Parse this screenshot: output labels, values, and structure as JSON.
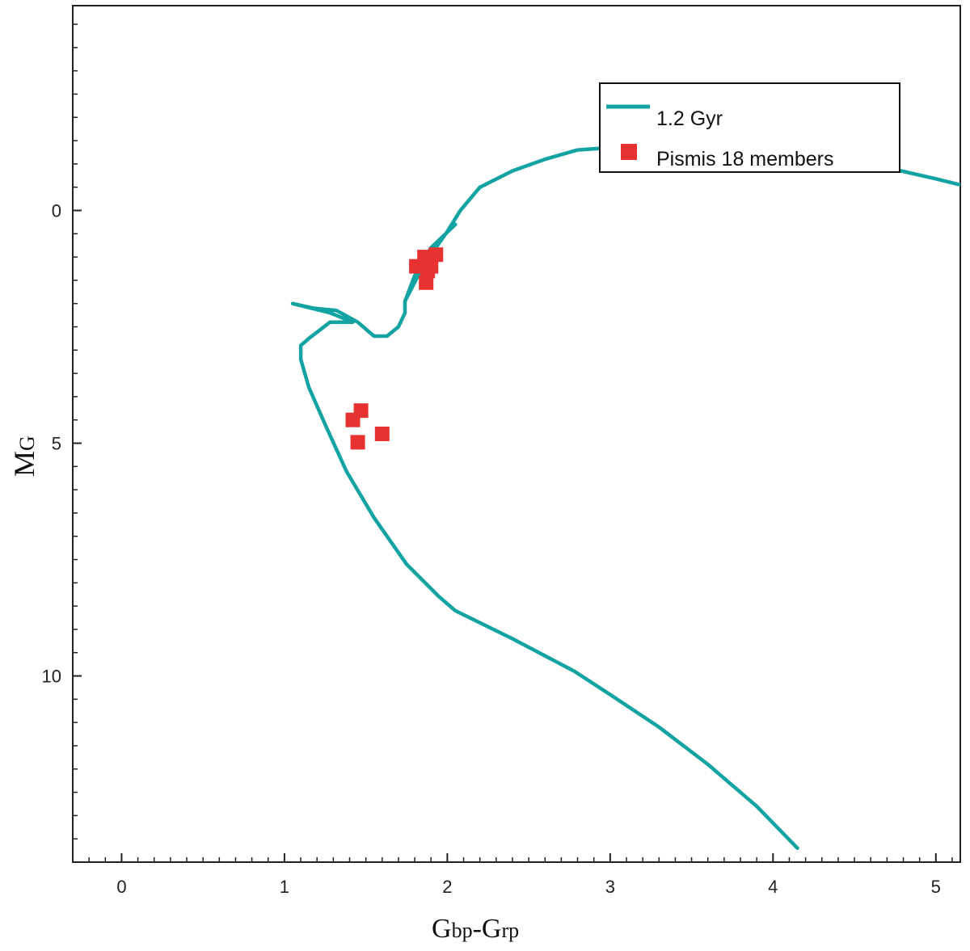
{
  "chart_data": {
    "type": "scatter",
    "title": "",
    "xlabel": {
      "main": "G",
      "sub1": "bp",
      "sep": "-G",
      "sub2": "rp"
    },
    "ylabel": {
      "main": "M",
      "sub": "G"
    },
    "xlim": [
      -0.3,
      5.15
    ],
    "ylim": [
      14.0,
      -4.4
    ],
    "y_inverted": true,
    "xticks": [
      0,
      1,
      2,
      3,
      4,
      5
    ],
    "xtick_labels": [
      "0",
      "1",
      "2",
      "3",
      "4",
      "5"
    ],
    "yticks": [
      0,
      5,
      10
    ],
    "ytick_labels": [
      "0",
      "5",
      "10"
    ],
    "grid": false,
    "legend_position": "top-right",
    "series": [
      {
        "name": "1.2 Gyr",
        "kind": "line",
        "color": "#14a3a3",
        "x": [
          4.15,
          3.9,
          3.6,
          3.3,
          3.0,
          2.78,
          2.4,
          2.05,
          1.95,
          1.75,
          1.55,
          1.38,
          1.25,
          1.15,
          1.1,
          1.1,
          1.15,
          1.28,
          1.42,
          1.28,
          1.05,
          1.18,
          1.32,
          1.45,
          1.55,
          1.63,
          1.7,
          1.74,
          1.74,
          1.8,
          1.9,
          2.05
        ],
        "y": [
          13.7,
          12.8,
          11.9,
          11.1,
          10.4,
          9.9,
          9.2,
          8.6,
          8.3,
          7.6,
          6.6,
          5.6,
          4.6,
          3.8,
          3.2,
          2.9,
          2.75,
          2.4,
          2.4,
          2.2,
          2.0,
          2.1,
          2.15,
          2.4,
          2.7,
          2.7,
          2.5,
          2.2,
          1.95,
          1.4,
          0.8,
          0.3
        ]
      },
      {
        "name": "",
        "kind": "line",
        "color": "#14a3a3",
        "x": [
          1.74,
          1.85,
          2.0,
          2.08,
          2.2,
          2.4,
          2.6,
          2.8,
          3.0,
          3.2,
          3.5,
          3.9,
          4.3,
          4.7,
          5.0,
          5.15
        ],
        "y": [
          1.95,
          1.2,
          0.45,
          0.0,
          -0.5,
          -0.85,
          -1.1,
          -1.3,
          -1.35,
          -1.38,
          -1.36,
          -1.3,
          -1.12,
          -0.92,
          -0.68,
          -0.55
        ]
      },
      {
        "name": "Pismis 18 members",
        "kind": "scatter",
        "color": "#e83232",
        "x": [
          1.81,
          1.86,
          1.88,
          1.93,
          1.9,
          1.87,
          1.42,
          1.47,
          1.6,
          1.45
        ],
        "y": [
          1.2,
          1.0,
          1.3,
          0.95,
          1.2,
          1.55,
          4.5,
          4.3,
          4.8,
          4.98
        ]
      }
    ]
  }
}
